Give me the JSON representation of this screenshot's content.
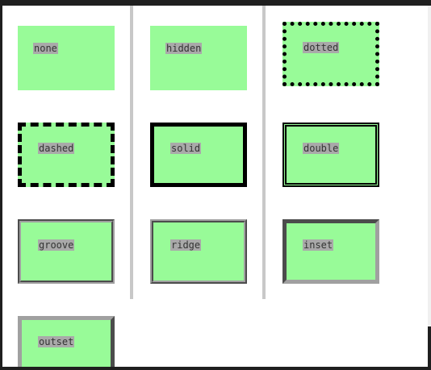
{
  "boxes": [
    {
      "id": "none",
      "label": "none"
    },
    {
      "id": "hidden",
      "label": "hidden"
    },
    {
      "id": "dotted",
      "label": "dotted"
    },
    {
      "id": "dashed",
      "label": "dashed"
    },
    {
      "id": "solid",
      "label": "solid"
    },
    {
      "id": "double",
      "label": "double"
    },
    {
      "id": "groove",
      "label": "groove"
    },
    {
      "id": "ridge",
      "label": "ridge"
    },
    {
      "id": "inset",
      "label": "inset"
    },
    {
      "id": "outset",
      "label": "outset"
    }
  ],
  "colors": {
    "box_fill": "#98fb98",
    "label_background": "#a9a9a9",
    "border": "#000000",
    "column_rule": "#c8c8c8"
  }
}
